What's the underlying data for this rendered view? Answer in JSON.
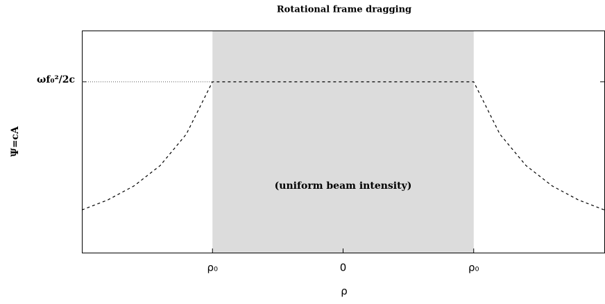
{
  "chart_data": {
    "type": "line",
    "title": "Rotational frame dragging",
    "xlabel": "ρ",
    "ylabel": "Ψ=cA",
    "annotation": "(uniform beam intensity)",
    "shade": {
      "x": [
        -1,
        1
      ],
      "color": "#dcdcdc"
    },
    "x": [
      -2,
      -1.8,
      -1.6,
      -1.4,
      -1.2,
      -1,
      1,
      1.2,
      1.4,
      1.6,
      1.8,
      2
    ],
    "series": [
      {
        "color": "#000000",
        "dashed": true,
        "values": [
          0.25,
          0.309,
          0.391,
          0.51,
          0.694,
          1,
          1,
          0.694,
          0.51,
          0.391,
          0.309,
          0.25
        ]
      }
    ],
    "xlim": [
      -2,
      2
    ],
    "xticks": [
      {
        "value": -1,
        "label": "ρ₀"
      },
      0,
      {
        "value": 1,
        "label": "ρ₀"
      }
    ],
    "ylim": [
      0,
      1.3
    ],
    "yticks": [
      {
        "value": 1,
        "label": "ωf₀²/2c"
      }
    ]
  }
}
